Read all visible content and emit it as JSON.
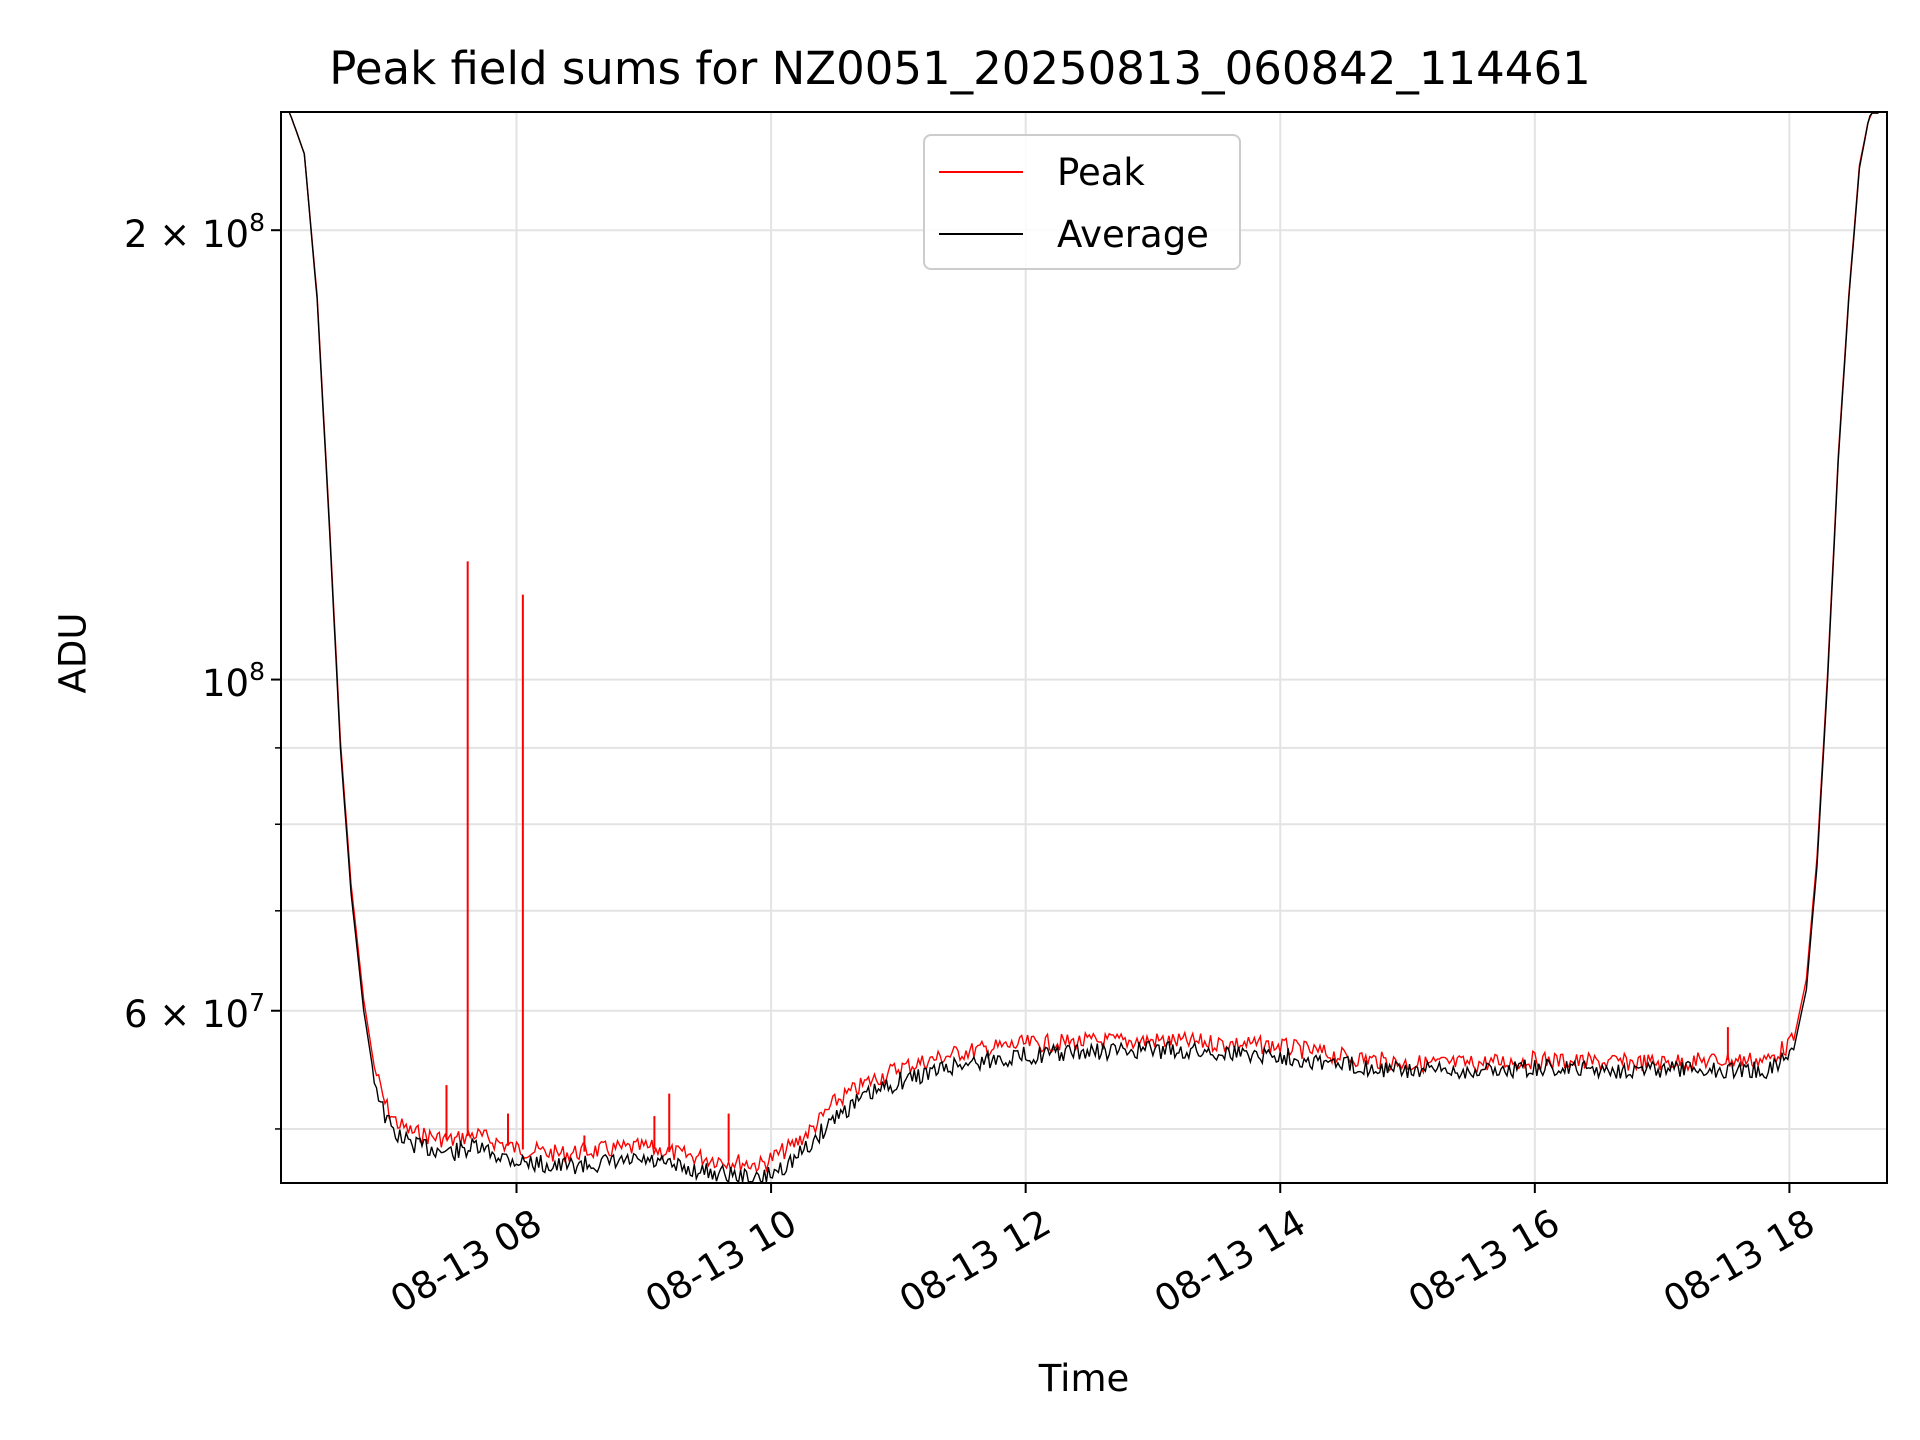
{
  "chart_data": {
    "type": "line",
    "title": "Peak field sums for NZ0051_20250813_060842_114461",
    "xlabel": "Time",
    "ylabel": "ADU",
    "yscale": "log",
    "xlim": [
      "2025-08-13 06:09",
      "2025-08-13 18:46"
    ],
    "ylim": [
      46000000,
      240000000
    ],
    "x_ticks": [
      {
        "time": "2025-08-13 08:00",
        "label": "08-13 08"
      },
      {
        "time": "2025-08-13 10:00",
        "label": "08-13 10"
      },
      {
        "time": "2025-08-13 12:00",
        "label": "08-13 12"
      },
      {
        "time": "2025-08-13 14:00",
        "label": "08-13 14"
      },
      {
        "time": "2025-08-13 16:00",
        "label": "08-13 16"
      },
      {
        "time": "2025-08-13 18:00",
        "label": "08-13 18"
      }
    ],
    "y_major_ticks": [
      {
        "value": 200000000,
        "base": "2 × 10",
        "exp": "8"
      },
      {
        "value": 100000000,
        "base": "10",
        "exp": "8"
      },
      {
        "value": 60000000,
        "base": "6 × 10",
        "exp": "7"
      }
    ],
    "y_minor_ticks": [
      50000000,
      70000000,
      80000000,
      90000000
    ],
    "grid": true,
    "legend_position": "top-center",
    "legend": [
      {
        "label": "Peak",
        "color": "#ff0000"
      },
      {
        "label": "Average",
        "color": "#000000"
      }
    ],
    "series": [
      {
        "name": "Average",
        "color": "#000000",
        "x": [
          "2025-08-13 06:13",
          "2025-08-13 06:20",
          "2025-08-13 06:26",
          "2025-08-13 06:32",
          "2025-08-13 06:37",
          "2025-08-13 06:42",
          "2025-08-13 06:48",
          "2025-08-13 06:53",
          "2025-08-13 06:58",
          "2025-08-13 07:02",
          "2025-08-13 07:05",
          "2025-08-13 07:10",
          "2025-08-13 07:20",
          "2025-08-13 07:30",
          "2025-08-13 07:40",
          "2025-08-13 08:00",
          "2025-08-13 08:20",
          "2025-08-13 08:40",
          "2025-08-13 09:00",
          "2025-08-13 09:20",
          "2025-08-13 09:40",
          "2025-08-13 09:55",
          "2025-08-13 10:10",
          "2025-08-13 10:20",
          "2025-08-13 10:30",
          "2025-08-13 10:45",
          "2025-08-13 11:00",
          "2025-08-13 11:30",
          "2025-08-13 12:00",
          "2025-08-13 12:30",
          "2025-08-13 13:00",
          "2025-08-13 13:30",
          "2025-08-13 14:00",
          "2025-08-13 14:30",
          "2025-08-13 15:00",
          "2025-08-13 15:30",
          "2025-08-13 16:00",
          "2025-08-13 16:30",
          "2025-08-13 17:00",
          "2025-08-13 17:30",
          "2025-08-13 17:50",
          "2025-08-13 18:02",
          "2025-08-13 18:08",
          "2025-08-13 18:13",
          "2025-08-13 18:18",
          "2025-08-13 18:23",
          "2025-08-13 18:28",
          "2025-08-13 18:33",
          "2025-08-13 18:38",
          "2025-08-13 18:42"
        ],
        "values": [
          240000000,
          225000000,
          180000000,
          125000000,
          90000000,
          72000000,
          60000000,
          54000000,
          51000000,
          49800000,
          49400000,
          48900000,
          48500000,
          48200000,
          48600000,
          47600000,
          47200000,
          47400000,
          47600000,
          47000000,
          46600000,
          46200000,
          47600000,
          49000000,
          51000000,
          52600000,
          53800000,
          55300000,
          56000000,
          56300000,
          56500000,
          56300000,
          56000000,
          55200000,
          54700000,
          54700000,
          54900000,
          54800000,
          54800000,
          54800000,
          54700000,
          56500000,
          62000000,
          75000000,
          100000000,
          140000000,
          180000000,
          220000000,
          240000000,
          240000000
        ]
      },
      {
        "name": "Peak",
        "color": "#ff0000",
        "x": [
          "2025-08-13 06:13",
          "2025-08-13 06:20",
          "2025-08-13 06:26",
          "2025-08-13 06:32",
          "2025-08-13 06:37",
          "2025-08-13 06:42",
          "2025-08-13 06:48",
          "2025-08-13 06:53",
          "2025-08-13 06:58",
          "2025-08-13 07:02",
          "2025-08-13 07:05",
          "2025-08-13 07:10",
          "2025-08-13 07:20",
          "2025-08-13 07:30",
          "2025-08-13 07:40",
          "2025-08-13 08:00",
          "2025-08-13 08:20",
          "2025-08-13 08:40",
          "2025-08-13 09:00",
          "2025-08-13 09:20",
          "2025-08-13 09:40",
          "2025-08-13 09:55",
          "2025-08-13 10:10",
          "2025-08-13 10:20",
          "2025-08-13 10:30",
          "2025-08-13 10:45",
          "2025-08-13 11:00",
          "2025-08-13 11:30",
          "2025-08-13 12:00",
          "2025-08-13 12:30",
          "2025-08-13 13:00",
          "2025-08-13 13:30",
          "2025-08-13 14:00",
          "2025-08-13 14:30",
          "2025-08-13 15:00",
          "2025-08-13 15:30",
          "2025-08-13 16:00",
          "2025-08-13 16:30",
          "2025-08-13 17:00",
          "2025-08-13 17:30",
          "2025-08-13 17:50",
          "2025-08-13 18:02",
          "2025-08-13 18:08",
          "2025-08-13 18:13",
          "2025-08-13 18:18",
          "2025-08-13 18:23",
          "2025-08-13 18:28",
          "2025-08-13 18:33",
          "2025-08-13 18:38",
          "2025-08-13 18:42"
        ],
        "values": [
          240000000,
          225000000,
          181000000,
          126000000,
          91000000,
          73000000,
          61000000,
          55000000,
          52000000,
          50800000,
          50300000,
          49800000,
          49400000,
          49100000,
          49600000,
          48500000,
          48100000,
          48400000,
          48600000,
          48000000,
          47600000,
          47300000,
          48700000,
          50100000,
          52100000,
          53700000,
          54900000,
          56300000,
          57000000,
          57200000,
          57300000,
          57100000,
          56800000,
          55900000,
          55300000,
          55300000,
          55600000,
          55400000,
          55400000,
          55600000,
          55600000,
          57300000,
          63000000,
          76000000,
          101000000,
          141000000,
          181000000,
          221000000,
          240000000,
          240000000
        ]
      }
    ],
    "peak_spikes": [
      {
        "time": "2025-08-13 07:27",
        "value": 53500000
      },
      {
        "time": "2025-08-13 07:37",
        "value": 120000000
      },
      {
        "time": "2025-08-13 07:56",
        "value": 51200000
      },
      {
        "time": "2025-08-13 08:03",
        "value": 114000000
      },
      {
        "time": "2025-08-13 08:32",
        "value": 49500000
      },
      {
        "time": "2025-08-13 09:05",
        "value": 51000000
      },
      {
        "time": "2025-08-13 09:12",
        "value": 52800000
      },
      {
        "time": "2025-08-13 09:40",
        "value": 51200000
      },
      {
        "time": "2025-08-13 17:31",
        "value": 58500000
      }
    ]
  }
}
